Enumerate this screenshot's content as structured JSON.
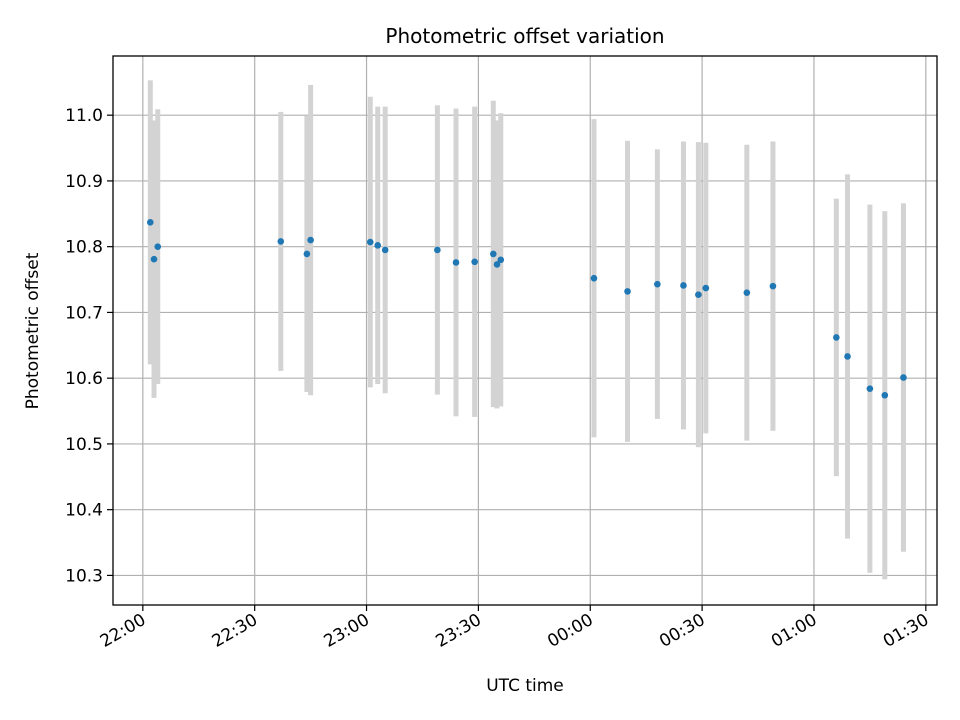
{
  "chart_data": {
    "type": "scatter",
    "title": "Photometric offset variation",
    "xlabel": "UTC time",
    "ylabel": "Photometric offset",
    "xlim": [
      "21:52",
      "01:33"
    ],
    "ylim": [
      10.255,
      11.09
    ],
    "grid": true,
    "x_ticks": [
      "22:00",
      "22:30",
      "23:00",
      "23:30",
      "00:00",
      "00:30",
      "01:00",
      "01:30"
    ],
    "y_ticks": [
      "10.3",
      "10.4",
      "10.5",
      "10.6",
      "10.7",
      "10.8",
      "10.9",
      "11.0"
    ],
    "colors": {
      "point": "#1f77b4",
      "errorbar": "#d3d3d3",
      "grid": "#b0b0b0"
    },
    "series": [
      {
        "points": [
          {
            "x": "22:02",
            "y": 10.837,
            "low": 10.621,
            "high": 11.053
          },
          {
            "x": "22:03",
            "y": 10.781,
            "low": 10.57,
            "high": 10.992
          },
          {
            "x": "22:04",
            "y": 10.8,
            "low": 10.591,
            "high": 11.009
          },
          {
            "x": "22:37",
            "y": 10.808,
            "low": 10.611,
            "high": 11.005
          },
          {
            "x": "22:44",
            "y": 10.789,
            "low": 10.579,
            "high": 10.999
          },
          {
            "x": "22:45",
            "y": 10.81,
            "low": 10.574,
            "high": 11.046
          },
          {
            "x": "23:01",
            "y": 10.807,
            "low": 10.586,
            "high": 11.028
          },
          {
            "x": "23:03",
            "y": 10.802,
            "low": 10.591,
            "high": 11.013
          },
          {
            "x": "23:05",
            "y": 10.795,
            "low": 10.577,
            "high": 11.013
          },
          {
            "x": "23:19",
            "y": 10.795,
            "low": 10.575,
            "high": 11.015
          },
          {
            "x": "23:24",
            "y": 10.776,
            "low": 10.542,
            "high": 11.01
          },
          {
            "x": "23:29",
            "y": 10.777,
            "low": 10.541,
            "high": 11.013
          },
          {
            "x": "23:34",
            "y": 10.789,
            "low": 10.556,
            "high": 11.022
          },
          {
            "x": "23:35",
            "y": 10.773,
            "low": 10.554,
            "high": 10.992
          },
          {
            "x": "23:36",
            "y": 10.78,
            "low": 10.557,
            "high": 11.003
          },
          {
            "x": "00:01",
            "y": 10.752,
            "low": 10.51,
            "high": 10.994
          },
          {
            "x": "00:10",
            "y": 10.732,
            "low": 10.503,
            "high": 10.961
          },
          {
            "x": "00:18",
            "y": 10.743,
            "low": 10.538,
            "high": 10.948
          },
          {
            "x": "00:25",
            "y": 10.741,
            "low": 10.522,
            "high": 10.96
          },
          {
            "x": "00:29",
            "y": 10.727,
            "low": 10.495,
            "high": 10.959
          },
          {
            "x": "00:31",
            "y": 10.737,
            "low": 10.516,
            "high": 10.958
          },
          {
            "x": "00:42",
            "y": 10.73,
            "low": 10.505,
            "high": 10.955
          },
          {
            "x": "00:49",
            "y": 10.74,
            "low": 10.52,
            "high": 10.96
          },
          {
            "x": "01:06",
            "y": 10.662,
            "low": 10.451,
            "high": 10.873
          },
          {
            "x": "01:09",
            "y": 10.633,
            "low": 10.356,
            "high": 10.91
          },
          {
            "x": "01:15",
            "y": 10.584,
            "low": 10.304,
            "high": 10.864
          },
          {
            "x": "01:19",
            "y": 10.574,
            "low": 10.294,
            "high": 10.854
          },
          {
            "x": "01:24",
            "y": 10.601,
            "low": 10.336,
            "high": 10.866
          }
        ]
      }
    ]
  }
}
